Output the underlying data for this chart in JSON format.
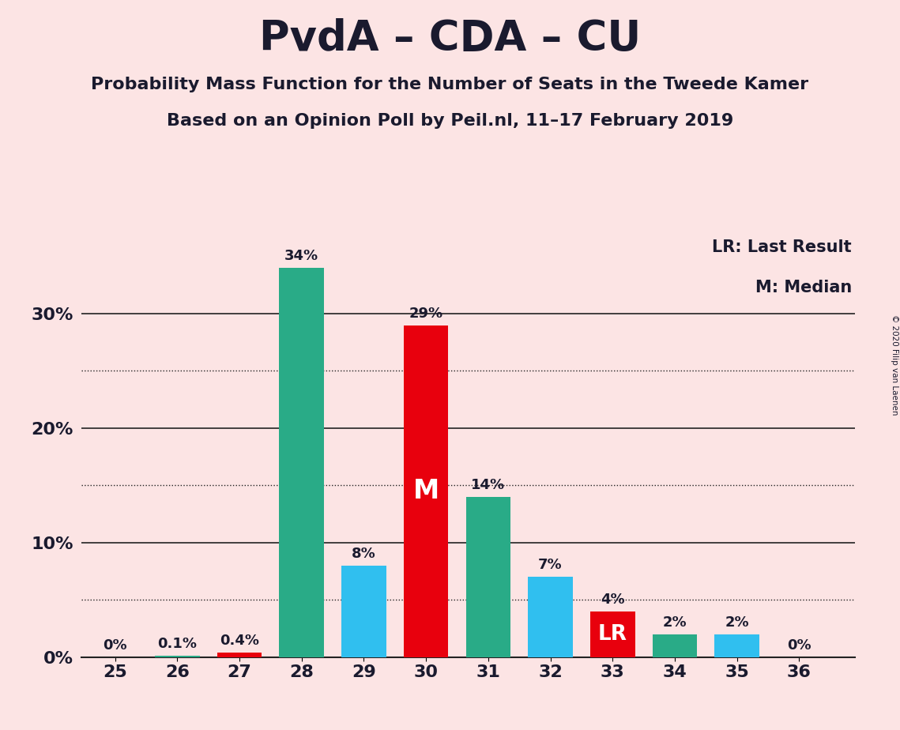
{
  "title": "PvdA – CDA – CU",
  "subtitle1": "Probability Mass Function for the Number of Seats in the Tweede Kamer",
  "subtitle2": "Based on an Opinion Poll by Peil.nl, 11–17 February 2019",
  "copyright": "© 2020 Filip van Laenen",
  "legend_lr": "LR: Last Result",
  "legend_m": "M: Median",
  "background_color": "#fce4e4",
  "categories": [
    25,
    26,
    27,
    28,
    29,
    30,
    31,
    32,
    33,
    34,
    35,
    36
  ],
  "values": [
    0.0,
    0.1,
    0.4,
    34,
    8,
    29,
    14,
    7,
    4,
    2,
    2,
    0
  ],
  "bar_colors": [
    "#29ab87",
    "#29ab87",
    "#e8000d",
    "#29ab87",
    "#30bfef",
    "#e8000d",
    "#29ab87",
    "#30bfef",
    "#e8000d",
    "#29ab87",
    "#30bfef",
    "#29ab87"
  ],
  "median_bar": 30,
  "lr_bar": 33,
  "label_texts": [
    "0%",
    "0.1%",
    "0.4%",
    "34%",
    "8%",
    "29%",
    "14%",
    "7%",
    "4%",
    "2%",
    "2%",
    "0%"
  ],
  "ylim": [
    0,
    37
  ],
  "yticks": [
    0,
    10,
    20,
    30
  ],
  "ytick_labels": [
    "0%",
    "10%",
    "20%",
    "30%"
  ],
  "grid_color": "#222222",
  "dotted_grid_values": [
    5,
    15,
    25
  ],
  "title_color": "#1a1a2e",
  "bar_width": 0.72
}
